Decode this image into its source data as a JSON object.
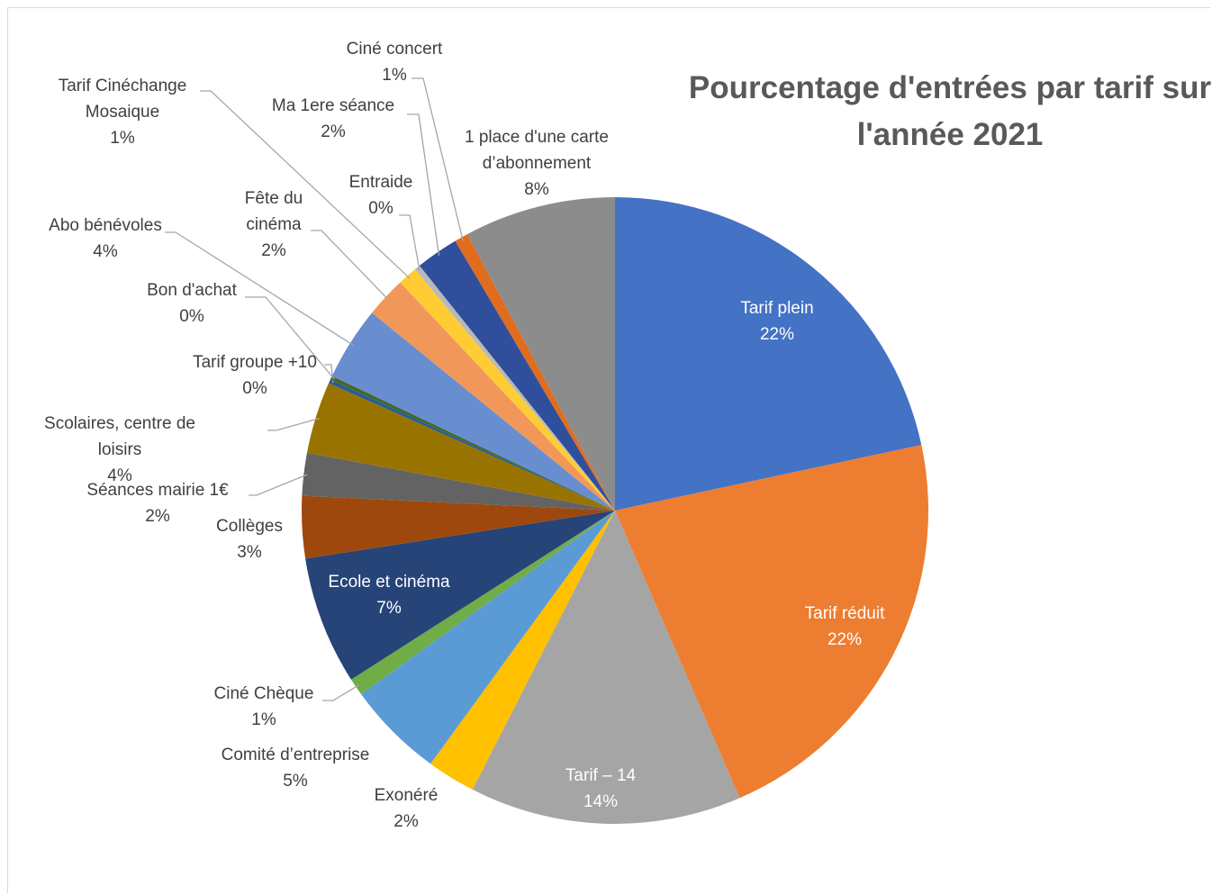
{
  "chart_data": {
    "type": "pie",
    "title": "Pourcentage d'entrées par tarif sur l'année 2021",
    "categories": [
      "Tarif plein",
      "Tarif réduit",
      "Tarif – 14",
      "Exonéré",
      "Comité d’entreprise",
      "Ciné Chèque",
      "Ecole et cinéma",
      "Collèges",
      "Séances mairie 1€",
      "Scolaires, centre de loisirs",
      "Tarif groupe +10",
      "Bon d'achat",
      "Abo bénévoles",
      "Fête du cinéma",
      "Tarif Cinéchange Mosaique",
      "Entraide",
      "Ma 1ere séance",
      "Ciné concert",
      "1 place d'une carte d’abonnement"
    ],
    "values": [
      21.6,
      21.8,
      14.0,
      2.5,
      5.0,
      0.9,
      6.6,
      3.2,
      2.2,
      3.7,
      0.2,
      0.2,
      3.8,
      2.1,
      1.0,
      0.3,
      2.2,
      0.7,
      7.8
    ],
    "value_labels": [
      "22%",
      "22%",
      "14%",
      "2%",
      "5%",
      "1%",
      "7%",
      "3%",
      "2%",
      "4%",
      "0%",
      "0%",
      "4%",
      "2%",
      "1%",
      "0%",
      "2%",
      "1%",
      "8%"
    ],
    "colors": [
      "#4472c4",
      "#ed7d31",
      "#a5a5a5",
      "#ffc000",
      "#5b9bd5",
      "#70ad47",
      "#264478",
      "#9e480e",
      "#636363",
      "#997300",
      "#255e91",
      "#43682b",
      "#698ed0",
      "#f1975a",
      "#ffcd33",
      "#b9b9b9",
      "#2f4f9c",
      "#e06c1d",
      "#8c8c8c"
    ]
  }
}
